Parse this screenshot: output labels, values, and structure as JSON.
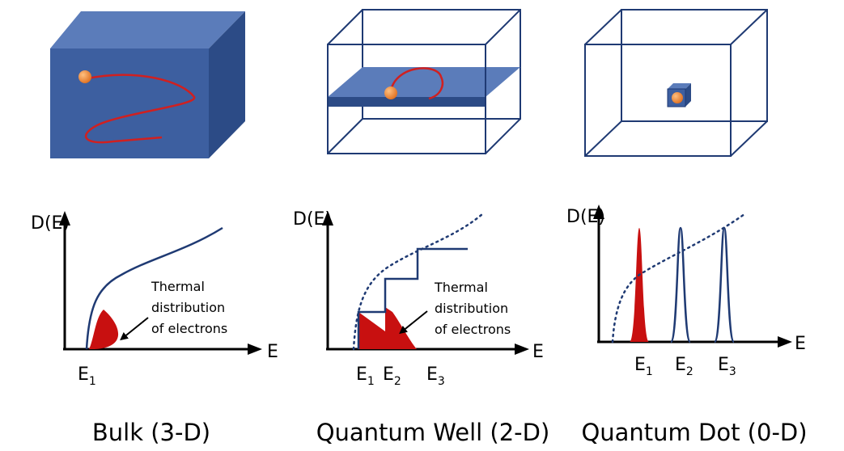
{
  "panels": [
    {
      "caption": "Bulk (3-D)",
      "y_label": "D(E)",
      "x_label": "E",
      "levels": [
        {
          "base": "E",
          "sub": "1"
        }
      ],
      "annotation": [
        "Thermal",
        "distribution",
        "of electrons"
      ]
    },
    {
      "caption": "Quantum Well (2-D)",
      "y_label": "D(E)",
      "x_label": "E",
      "levels": [
        {
          "base": "E",
          "sub": "1"
        },
        {
          "base": "E",
          "sub": "2"
        },
        {
          "base": "E",
          "sub": "3"
        }
      ],
      "annotation": [
        "Thermal",
        "distribution",
        "of electrons"
      ]
    },
    {
      "caption": "Quantum Dot (0-D)",
      "y_label": "D(E)",
      "x_label": "E",
      "levels": [
        {
          "base": "E",
          "sub": "1"
        },
        {
          "base": "E",
          "sub": "2"
        },
        {
          "base": "E",
          "sub": "3"
        }
      ]
    }
  ]
}
